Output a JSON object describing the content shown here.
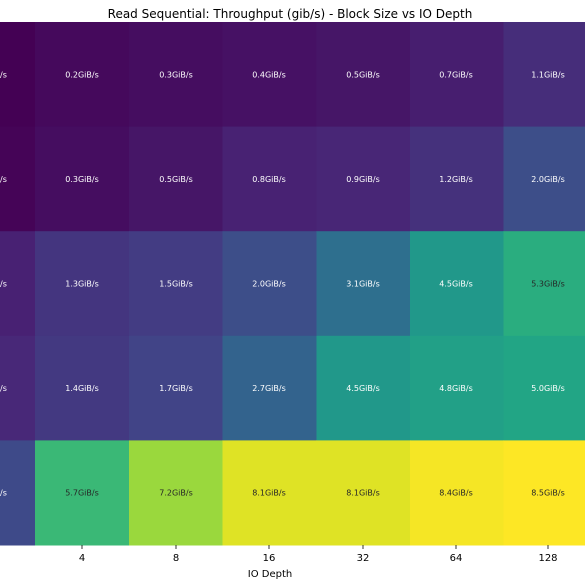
{
  "chart_data": {
    "type": "heatmap",
    "title": "Read Sequential: Throughput (gib/s) - Block Size vs IO Depth",
    "xlabel": "IO Depth",
    "ylabel": "",
    "value_suffix": "GiB/s",
    "x_categories": [
      "",
      "4",
      "8",
      "16",
      "32",
      "64",
      "128"
    ],
    "rows": [
      {
        "values": [
          null,
          0.2,
          0.3,
          0.4,
          0.5,
          0.7,
          1.1
        ],
        "labels": [
          "/s",
          "0.2GiB/s",
          "0.3GiB/s",
          "0.4GiB/s",
          "0.5GiB/s",
          "0.7GiB/s",
          "1.1GiB/s"
        ]
      },
      {
        "values": [
          null,
          0.3,
          0.5,
          0.8,
          0.9,
          1.2,
          2.0
        ],
        "labels": [
          "/s",
          "0.3GiB/s",
          "0.5GiB/s",
          "0.8GiB/s",
          "0.9GiB/s",
          "1.2GiB/s",
          "2.0GiB/s"
        ]
      },
      {
        "values": [
          null,
          1.3,
          1.5,
          2.0,
          3.1,
          4.5,
          5.3
        ],
        "labels": [
          "/s",
          "1.3GiB/s",
          "1.5GiB/s",
          "2.0GiB/s",
          "3.1GiB/s",
          "4.5GiB/s",
          "5.3GiB/s"
        ]
      },
      {
        "values": [
          null,
          1.4,
          1.7,
          2.7,
          4.5,
          4.8,
          5.0
        ],
        "labels": [
          "/s",
          "1.4GiB/s",
          "1.7GiB/s",
          "2.7GiB/s",
          "4.5GiB/s",
          "4.8GiB/s",
          "5.0GiB/s"
        ]
      },
      {
        "values": [
          null,
          5.7,
          7.2,
          8.1,
          8.1,
          8.4,
          8.5
        ],
        "labels": [
          "/s",
          "5.7GiB/s",
          "7.2GiB/s",
          "8.1GiB/s",
          "8.1GiB/s",
          "8.4GiB/s",
          "8.5GiB/s"
        ]
      }
    ],
    "partial_column_colors": [
      "#440154",
      "#450457",
      "#482173",
      "#482878",
      "#3e4a89"
    ],
    "colormap": "viridis",
    "vmin": 0,
    "vmax": 8.5,
    "grid": false,
    "legend": "none"
  }
}
